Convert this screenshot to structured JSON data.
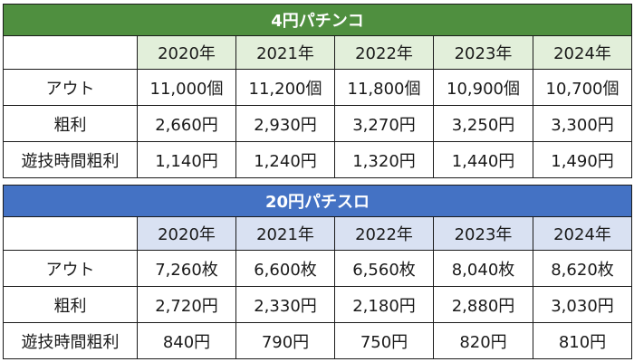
{
  "colors": {
    "pachinko_header": "#4f8f3f",
    "pachinko_year_bg": "#e2efda",
    "slot_header": "#4472c4",
    "slot_year_bg": "#d9e1f2",
    "border": "#1a1a1a"
  },
  "tables": [
    {
      "title": "4円パチンコ",
      "years": [
        "2020年",
        "2021年",
        "2022年",
        "2023年",
        "2024年"
      ],
      "rows": [
        {
          "label": "アウト",
          "values": [
            "11,000個",
            "11,200個",
            "11,800個",
            "10,900個",
            "10,700個"
          ]
        },
        {
          "label": "粗利",
          "values": [
            "2,660円",
            "2,930円",
            "3,270円",
            "3,250円",
            "3,300円"
          ]
        },
        {
          "label": "遊技時間粗利",
          "values": [
            "1,140円",
            "1,240円",
            "1,320円",
            "1,440円",
            "1,490円"
          ]
        }
      ]
    },
    {
      "title": "20円パチスロ",
      "years": [
        "2020年",
        "2021年",
        "2022年",
        "2023年",
        "2024年"
      ],
      "rows": [
        {
          "label": "アウト",
          "values": [
            "7,260枚",
            "6,600枚",
            "6,560枚",
            "8,040枚",
            "8,620枚"
          ]
        },
        {
          "label": "粗利",
          "values": [
            "2,720円",
            "2,330円",
            "2,180円",
            "2,880円",
            "3,030円"
          ]
        },
        {
          "label": "遊技時間粗利",
          "values": [
            "840円",
            "790円",
            "750円",
            "820円",
            "810円"
          ]
        }
      ]
    }
  ]
}
